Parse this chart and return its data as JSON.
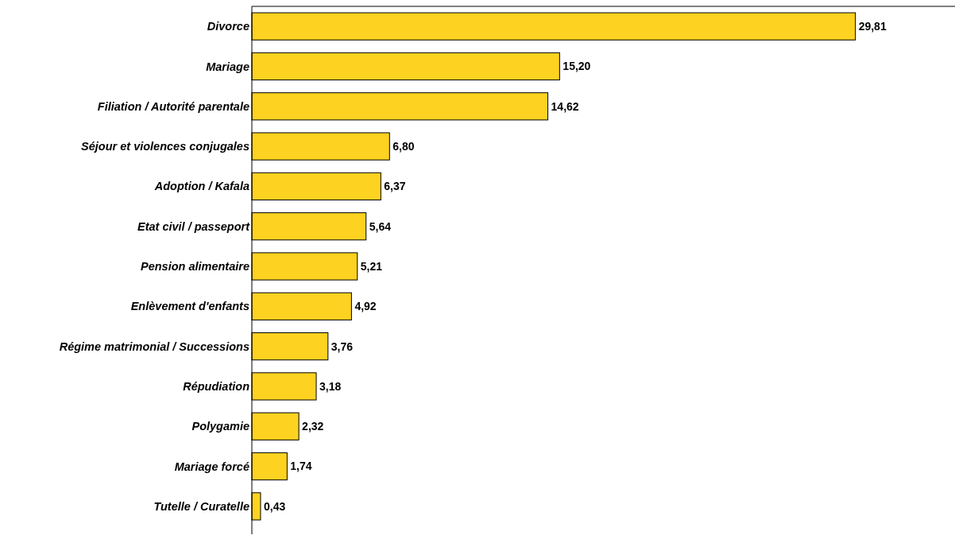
{
  "chart_data": {
    "type": "bar",
    "orientation": "horizontal",
    "categories": [
      "Divorce",
      "Mariage",
      "Filiation / Autorité parentale",
      "Séjour et violences conjugales",
      "Adoption / Kafala",
      "Etat civil / passeport",
      "Pension alimentaire",
      "Enlèvement d'enfants",
      "Régime matrimonial / Successions",
      "Répudiation",
      "Polygamie",
      "Mariage forcé",
      "Tutelle / Curatelle"
    ],
    "values": [
      29.81,
      15.2,
      14.62,
      6.8,
      6.37,
      5.64,
      5.21,
      4.92,
      3.76,
      3.18,
      2.32,
      1.74,
      0.43
    ],
    "value_labels": [
      "29,81",
      "15,20",
      "14,62",
      "6,80",
      "6,37",
      "5,64",
      "5,21",
      "4,92",
      "3,76",
      "3,18",
      "2,32",
      "1,74",
      "0,43"
    ],
    "color": "#fdd220"
  }
}
